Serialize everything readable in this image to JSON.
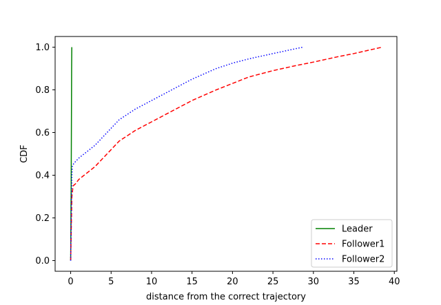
{
  "chart_data": {
    "type": "line",
    "title": "",
    "xlabel": "distance from the correct trajectory",
    "ylabel": "CDF",
    "xlim": [
      -1.92,
      40.32
    ],
    "ylim": [
      -0.05,
      1.05
    ],
    "xticks": [
      0,
      5,
      10,
      15,
      20,
      25,
      30,
      35,
      40
    ],
    "yticks": [
      0.0,
      0.2,
      0.4,
      0.6,
      0.8,
      1.0
    ],
    "xtick_labels": [
      "0",
      "5",
      "10",
      "15",
      "20",
      "25",
      "30",
      "35",
      "40"
    ],
    "ytick_labels": [
      "0.0",
      "0.2",
      "0.4",
      "0.6",
      "0.8",
      "1.0"
    ],
    "grid": false,
    "legend_position": "bottom-right",
    "series": [
      {
        "name": "Leader",
        "color": "#008000",
        "dash": "solid",
        "x": [
          0.0,
          0.02,
          0.04,
          0.06,
          0.08,
          0.1,
          0.12,
          0.14
        ],
        "y": [
          0.0,
          0.1,
          0.25,
          0.33,
          0.5,
          0.7,
          0.9,
          1.0
        ]
      },
      {
        "name": "Follower1",
        "color": "#ff0000",
        "dash": "dashed",
        "x": [
          0.0,
          0.05,
          0.1,
          0.15,
          0.3,
          0.6,
          1.0,
          2.0,
          3.0,
          4.0,
          5.0,
          6.0,
          8.0,
          10.0,
          12.0,
          15.0,
          18.0,
          20.0,
          22.0,
          25.0,
          28.0,
          30.0,
          33.0,
          35.0,
          38.5
        ],
        "y": [
          0.0,
          0.1,
          0.2,
          0.3,
          0.35,
          0.36,
          0.38,
          0.41,
          0.44,
          0.48,
          0.52,
          0.56,
          0.61,
          0.65,
          0.69,
          0.75,
          0.8,
          0.83,
          0.86,
          0.89,
          0.915,
          0.93,
          0.955,
          0.97,
          1.0
        ]
      },
      {
        "name": "Follower2",
        "color": "#0000ff",
        "dash": "dotted",
        "x": [
          0.0,
          0.05,
          0.1,
          0.15,
          0.2,
          0.3,
          0.5,
          1.0,
          2.0,
          3.0,
          4.0,
          5.0,
          6.0,
          8.0,
          10.0,
          12.0,
          15.0,
          18.0,
          20.0,
          22.0,
          25.0,
          28.7
        ],
        "y": [
          0.0,
          0.15,
          0.3,
          0.4,
          0.44,
          0.45,
          0.46,
          0.48,
          0.51,
          0.54,
          0.58,
          0.62,
          0.66,
          0.71,
          0.75,
          0.79,
          0.85,
          0.9,
          0.925,
          0.945,
          0.97,
          1.0
        ]
      }
    ]
  }
}
